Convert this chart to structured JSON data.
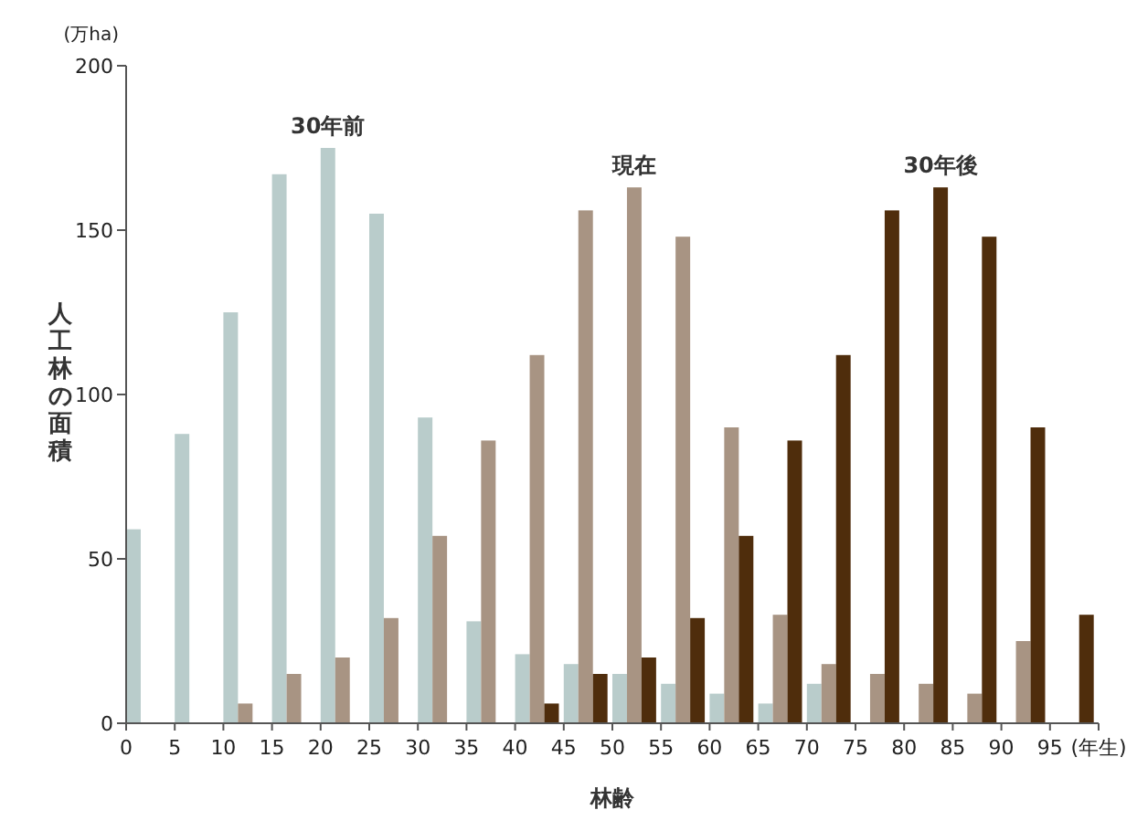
{
  "chart_data": {
    "type": "bar",
    "xlabel": "林齢",
    "ylabel": "人工林の面積",
    "annotations": [
      "(万ha)"
    ],
    "xlim": [
      0,
      100
    ],
    "xticks": [
      0,
      5,
      10,
      15,
      20,
      25,
      30,
      35,
      40,
      45,
      50,
      55,
      60,
      65,
      70,
      75,
      80,
      85,
      90,
      95,
      {
        "value": 100,
        "label": "(年生)"
      }
    ],
    "ylim": [
      0,
      200
    ],
    "yticks": [
      0,
      50,
      100,
      150,
      200
    ],
    "grid": false,
    "series": [
      {
        "name": "30年前",
        "color": "#b9cccb",
        "x": [
          0.75,
          5.75,
          10.75,
          15.75,
          20.75,
          25.75,
          30.75,
          35.75,
          40.75,
          45.75,
          50.75,
          55.75,
          60.75,
          65.75,
          70.75
        ],
        "values": [
          59,
          88,
          125,
          167,
          175,
          155,
          93,
          31,
          21,
          18,
          15,
          12,
          9,
          6,
          12
        ]
      },
      {
        "name": "現在",
        "color": "#a89483",
        "x": [
          12.25,
          17.25,
          22.25,
          27.25,
          32.25,
          37.25,
          42.25,
          47.25,
          52.25,
          57.25,
          62.25,
          67.25,
          72.25,
          77.25,
          82.25,
          87.25,
          92.25
        ],
        "values": [
          6,
          15,
          20,
          32,
          57,
          86,
          112,
          156,
          163,
          148,
          90,
          33,
          18,
          15,
          12,
          9,
          25
        ]
      },
      {
        "name": "30年後",
        "color": "#4f2d0c",
        "x": [
          43.75,
          48.75,
          53.75,
          58.75,
          63.75,
          68.75,
          73.75,
          78.75,
          83.75,
          88.75,
          93.75,
          98.75
        ],
        "values": [
          6,
          15,
          20,
          32,
          57,
          86,
          112,
          156,
          163,
          148,
          90,
          33
        ]
      }
    ]
  }
}
